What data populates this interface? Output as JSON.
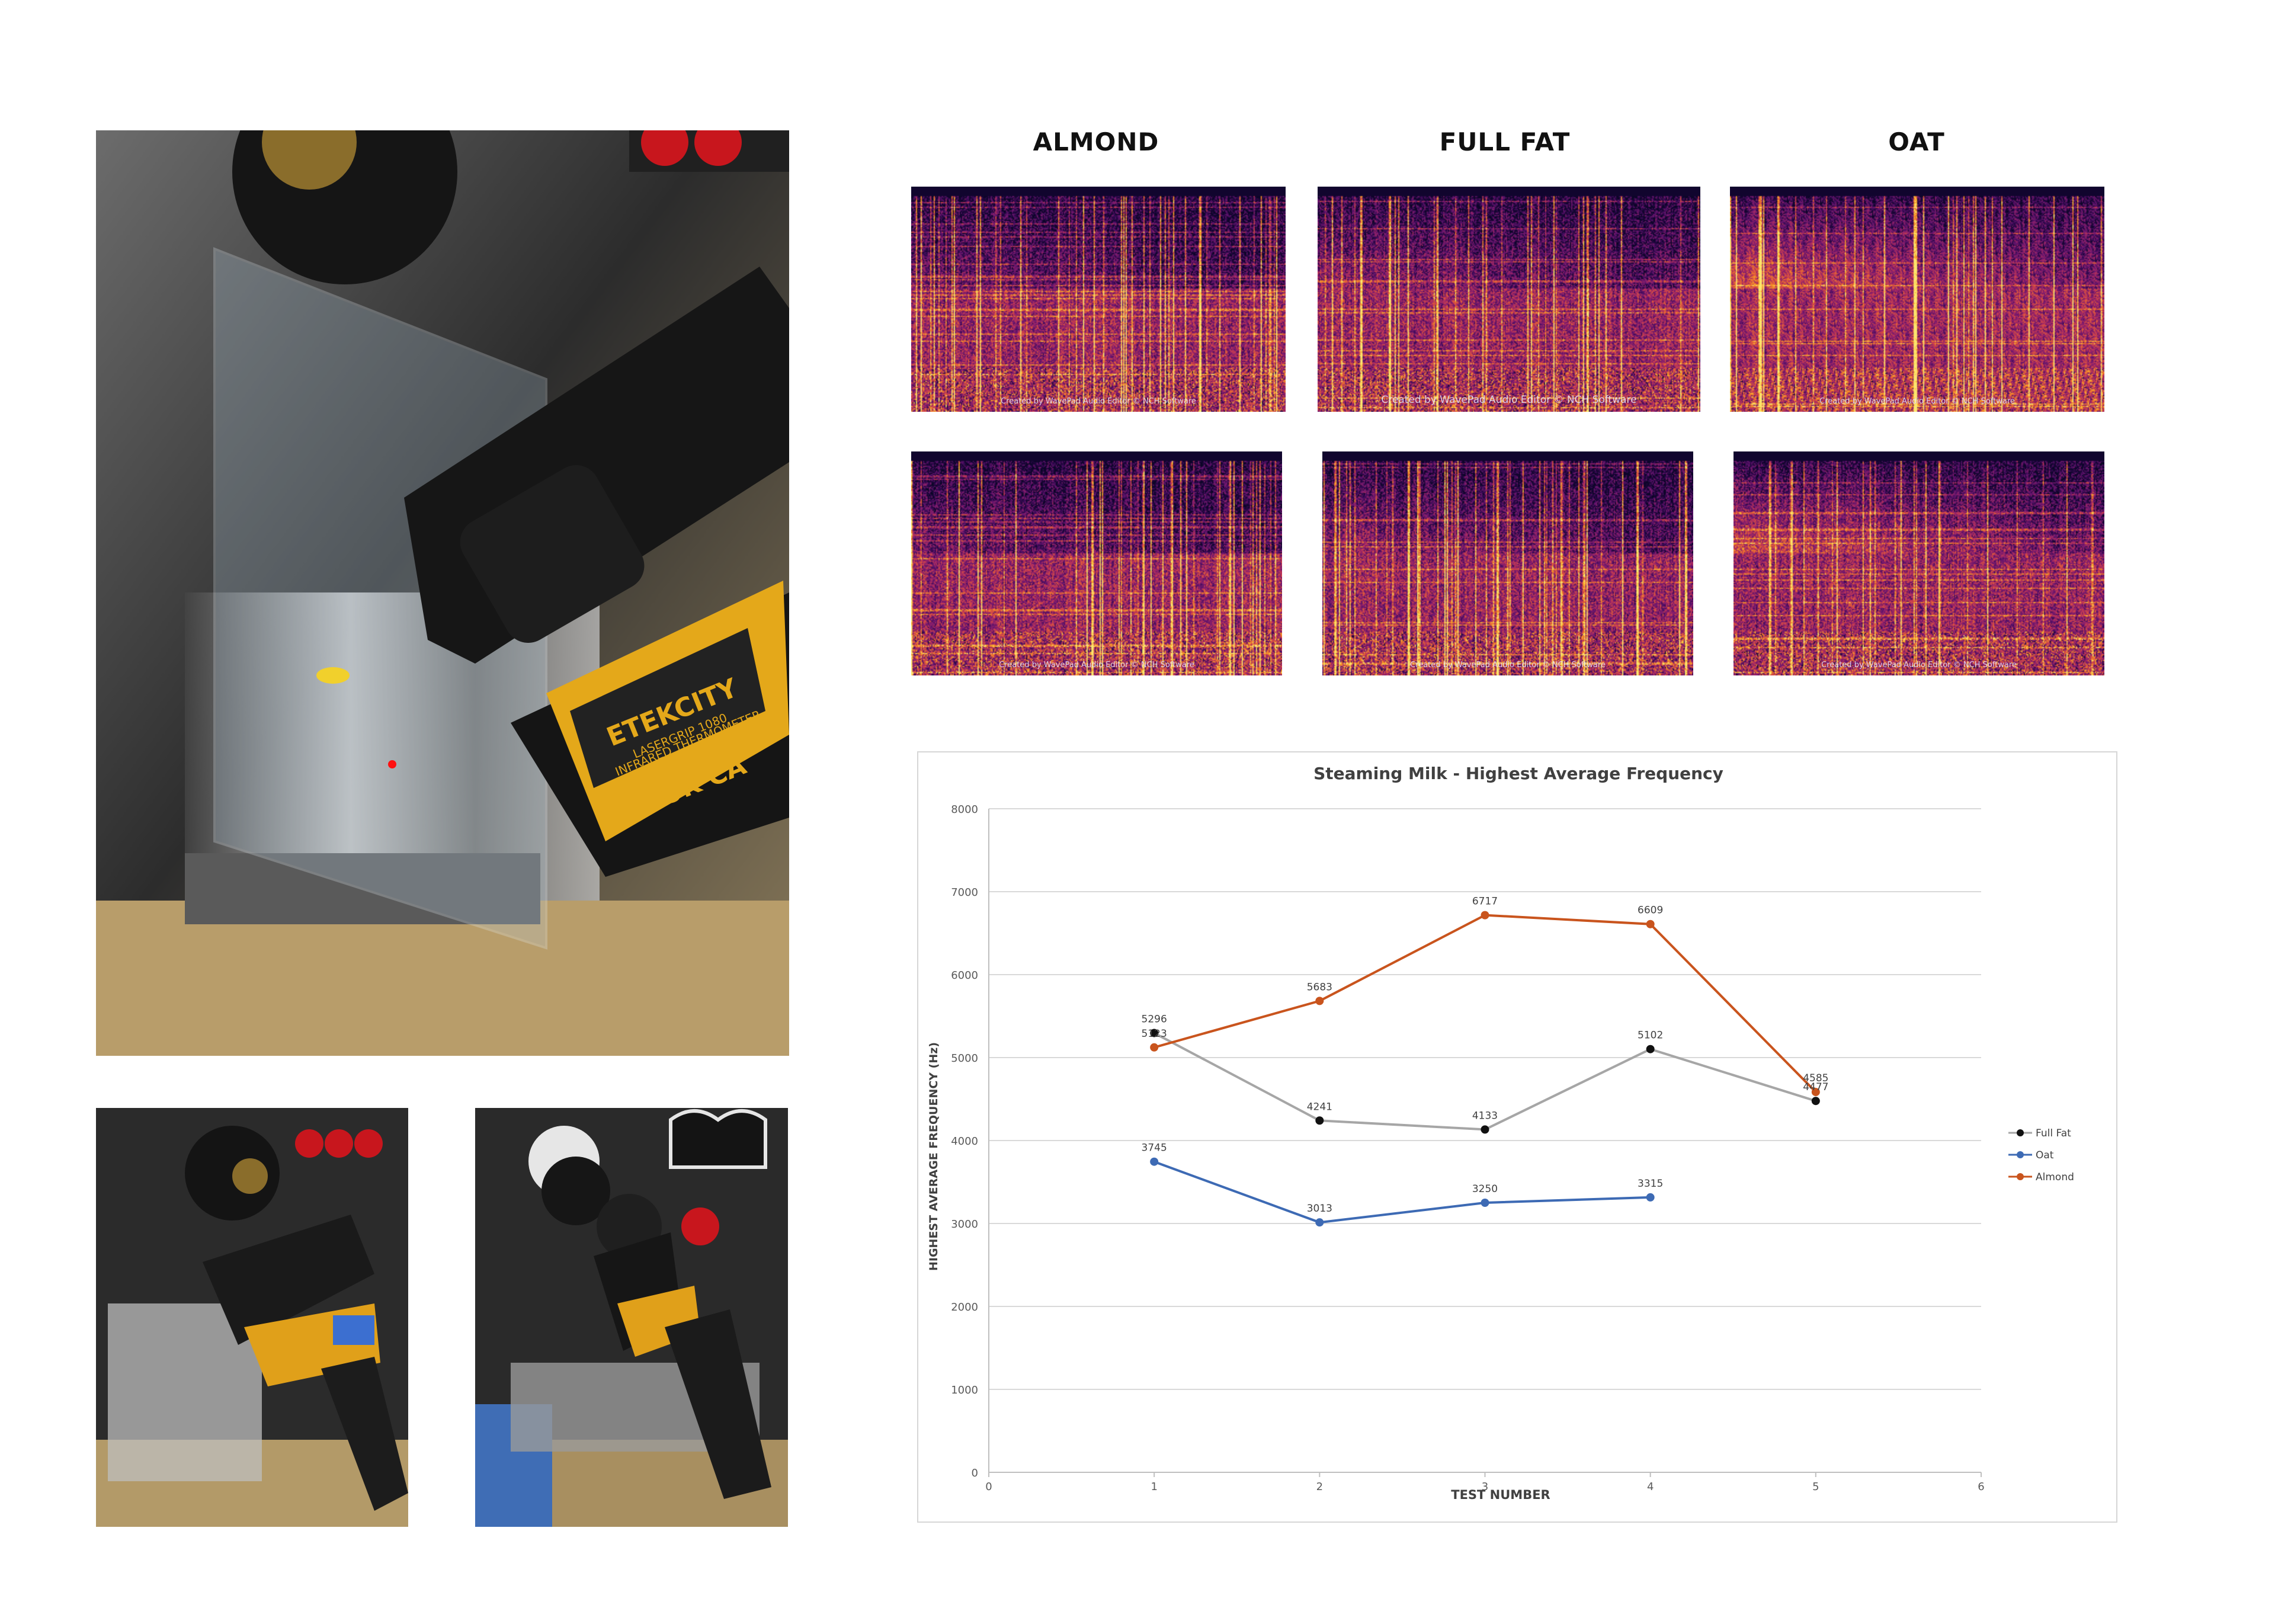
{
  "spectrogram_columns": [
    {
      "title": "ALMOND"
    },
    {
      "title": "FULL FAT"
    },
    {
      "title": "OAT"
    }
  ],
  "spectrogram_watermark": "Created by WavePad Audio Editor © NCH Software",
  "photos": {
    "main_brand_text": "ETEKCITY",
    "main_model_text": "LASERGRIP 1080",
    "main_label_text": "INFRARED THERMOMETER",
    "main_mark_text": "UK CA"
  },
  "colors": {
    "full_fat": "#111111",
    "oat": "#3d6ab4",
    "almond": "#c9541d",
    "full_fat_line": "#a6a6a6",
    "grid": "#d9d9d9"
  },
  "chart_data": {
    "type": "line",
    "title": "Steaming Milk - Highest Average Frequency",
    "xlabel": "TEST NUMBER",
    "ylabel": "HIGHEST AVERAGE FREQUENCY (Hz)",
    "xlim": [
      0,
      6
    ],
    "ylim": [
      0,
      8000
    ],
    "xticks": [
      0,
      1,
      2,
      3,
      4,
      5,
      6
    ],
    "yticks": [
      0,
      1000,
      2000,
      3000,
      4000,
      5000,
      6000,
      7000,
      8000
    ],
    "grid": "horizontal",
    "legend_position": "right",
    "series": [
      {
        "name": "Full Fat",
        "x": [
          1,
          2,
          3,
          4,
          5
        ],
        "y": [
          5296,
          4241,
          4133,
          5102,
          4477
        ],
        "labels": [
          "5296",
          "4241",
          "4133",
          "5102",
          "4477"
        ]
      },
      {
        "name": "Oat",
        "x": [
          1,
          2,
          3,
          4
        ],
        "y": [
          3745,
          3013,
          3250,
          3315
        ],
        "labels": [
          "3745",
          "3013",
          "3250",
          "3315"
        ]
      },
      {
        "name": "Almond",
        "x": [
          1,
          2,
          3,
          4,
          5
        ],
        "y": [
          5123,
          5683,
          6717,
          6609,
          4585
        ],
        "labels": [
          "5123",
          "5683",
          "6717",
          "6609",
          "4585"
        ]
      }
    ]
  }
}
